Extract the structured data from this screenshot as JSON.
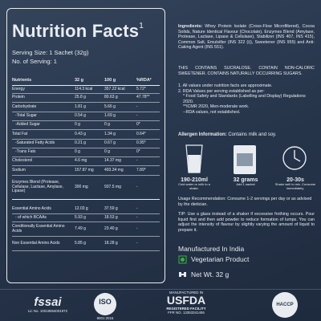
{
  "nutrition": {
    "title": "Nutrition Facts",
    "title_footnote": "1",
    "serving_size": "Serving Size: 1 Sachet (32g)",
    "servings": "No. of Serving: 1",
    "columns": [
      "Nutrients",
      "32 g",
      "100 g",
      "%RDA²"
    ],
    "rows": [
      [
        "Energy",
        "114.3 kcal",
        "357.22 kcal",
        "5.72*"
      ],
      [
        "Protein",
        "25.8 g",
        "80.63 g",
        "47.78**"
      ],
      [
        "Carbohydrate",
        "1.81 g",
        "5.66 g",
        "-"
      ],
      [
        "-Total Sugar",
        "0.54 g",
        "1.69 g",
        "-"
      ],
      [
        "-Added Sugar",
        "0 g",
        "0 g",
        "0*"
      ],
      [
        "Total Fat",
        "0.43 g",
        "1.34 g",
        "0.64*"
      ],
      [
        "-Saturated Fatty Acids",
        "0.21 g",
        "0.67 g",
        "0.95*"
      ],
      [
        "-Trans Fats",
        "0 g",
        "0 g",
        "0*"
      ],
      [
        "Cholesterol",
        "4.6 mg",
        "14.37 mg",
        "-"
      ],
      [
        "Sodium",
        "157.87 mg",
        "493.34 mg",
        "7.89*"
      ],
      [
        "Enzymes Blend (Protease, Cellulase, Lactase, Amylase, Lipase)",
        "300 mg",
        "937.5 mg",
        "-"
      ],
      [
        "Essential Amino Acids",
        "12.03 g",
        "37.59 g",
        "-"
      ],
      [
        "- of which BCAAs",
        "5.93 g",
        "18.53 g",
        "-"
      ],
      [
        "Conditionally Essential Amino Acids",
        "7.49 g",
        "23.40 g",
        "-"
      ],
      [
        "Non Essential Amino Acids",
        "5.85 g",
        "18.28 g",
        "-"
      ]
    ]
  },
  "info": {
    "ingredients_label": "Ingredients:",
    "ingredients": "Whey Protein Isolate (Cross-Flow Microfiltered), Cocoa Solids, Nature Identical Flavour (Chocolate), Enzymes Blend (Amylase, Protease, Lactase, Lipase & Cellulase), Stabilizer (INS 407, INS 415), Common Salt, Emulsifier (INS 322 (i)), Sweetener (INS 955) and Anti-Caking Agent (INS 551).",
    "warning": "THIS CONTAINS SUCRALOSE. CONTAIN NON-CALORIC SWEETENER. CONTAINS NATURALLY OCCURRING SUGARS.",
    "notes": [
      "1. All values under nutrition facts are approximate.",
      "2. RDA Values per serving established as per:",
      "* Food Safety and Standards (Labelling and Display) Regulations 2020.",
      "**ICMR 2020, Men-moderate work.",
      "--RDA values, not established."
    ],
    "allergen_label": "Allergen Information:",
    "allergen": "Contains milk and soy.",
    "usage_icons": [
      {
        "title": "190-210ml",
        "text": "Cold water or milk to a shake."
      },
      {
        "title": "32 grams",
        "text": "Add 1 sachet"
      },
      {
        "title": "20-30s",
        "text": "Shake well to mix. Consume immediately."
      }
    ],
    "usage": "Usage Recommendation: Consume 1-2 servings per day or as advised by the dietician.",
    "tip": "TIP: Use a glass instead of a shaker if excessive frothing occurs. Pour liquid first and then add powder to reduce formation of lumps. You can adjust the intensity of flavour by slightly varying the amount of liquid to prepare it.",
    "made_in": "Manufactured In India",
    "veg": "Vegetarian Product",
    "net_wt": "Net Wt. 32 g"
  },
  "logos": {
    "fssai": "fssai",
    "fssai_lic": "Lic No. 10018064001972",
    "iso": "ISO",
    "iso_no": "9001:2015",
    "usfda_top": "MANUFACTURED IN",
    "usfda": "USFDA",
    "usfda_reg": "REGISTERED FACILITY",
    "usfda_ffr": "FFR NO. 13353341406",
    "haccp": "HACCP"
  }
}
